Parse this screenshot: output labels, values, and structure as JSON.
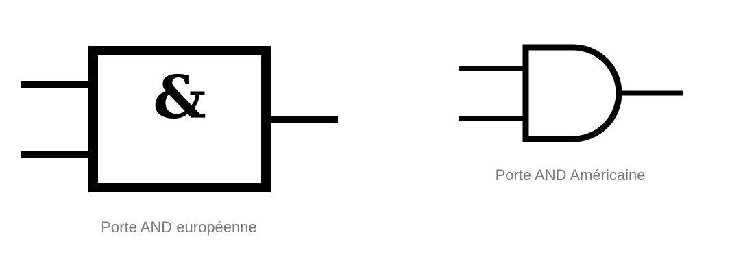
{
  "european_gate": {
    "symbol": "&",
    "caption": "Porte AND européenne"
  },
  "american_gate": {
    "caption": "Porte AND Américaine"
  },
  "colors": {
    "stroke": "#000000",
    "caption": "#7a7a7a",
    "background": "#ffffff"
  }
}
